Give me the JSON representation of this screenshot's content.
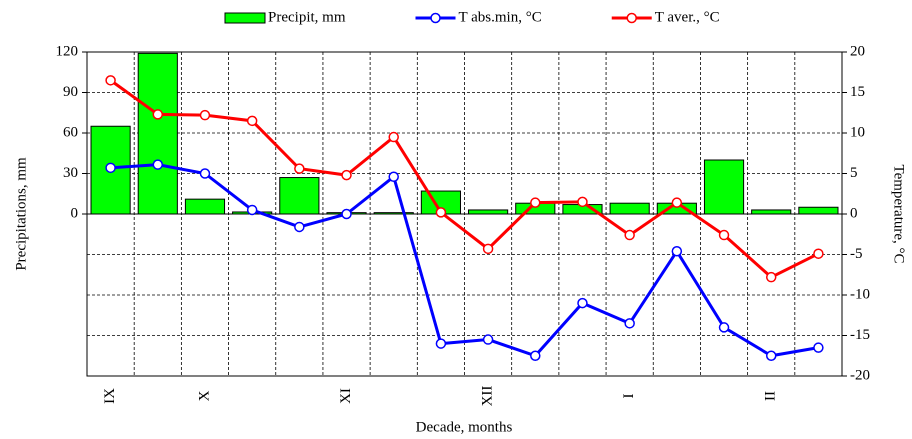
{
  "chart_data": {
    "type": "combo",
    "x_label": "Decade, months",
    "y_label": "Precipitations, mm",
    "y2_label": "Temperature, °C",
    "categories": [
      "IX",
      null,
      "X",
      null,
      null,
      "XI",
      null,
      null,
      "XII",
      null,
      null,
      "I",
      null,
      null,
      "II",
      null
    ],
    "ylim": [
      -120,
      120
    ],
    "yticks": [
      0,
      30,
      60,
      90,
      120
    ],
    "y2lim": [
      -20,
      20
    ],
    "y2ticks": [
      -20,
      -15,
      -10,
      -5,
      0,
      5,
      10,
      15,
      20
    ],
    "grid": true,
    "legend": "top",
    "series": [
      {
        "name": "Precipit, mm",
        "type": "bar",
        "color": "#00ff00",
        "values": [
          65,
          119,
          11,
          1.5,
          27,
          1,
          1,
          17,
          3,
          8,
          7,
          8,
          8,
          40,
          3,
          5
        ]
      },
      {
        "name": "T abs.min, °C",
        "type": "line",
        "axis": "y2",
        "color": "#0000ff",
        "values": [
          5.7,
          6.1,
          5.0,
          0.5,
          -1.6,
          0.0,
          4.6,
          -16.0,
          -15.5,
          -17.5,
          -11.0,
          -13.5,
          -4.6,
          -14.0,
          -17.5,
          -16.5
        ]
      },
      {
        "name": "T aver., °C",
        "type": "line",
        "axis": "y2",
        "color": "#ff0000",
        "values": [
          16.5,
          12.3,
          12.2,
          11.5,
          5.6,
          4.8,
          9.5,
          0.2,
          -4.3,
          1.4,
          1.5,
          -2.6,
          1.4,
          -2.6,
          -7.8,
          -4.9
        ]
      }
    ]
  }
}
